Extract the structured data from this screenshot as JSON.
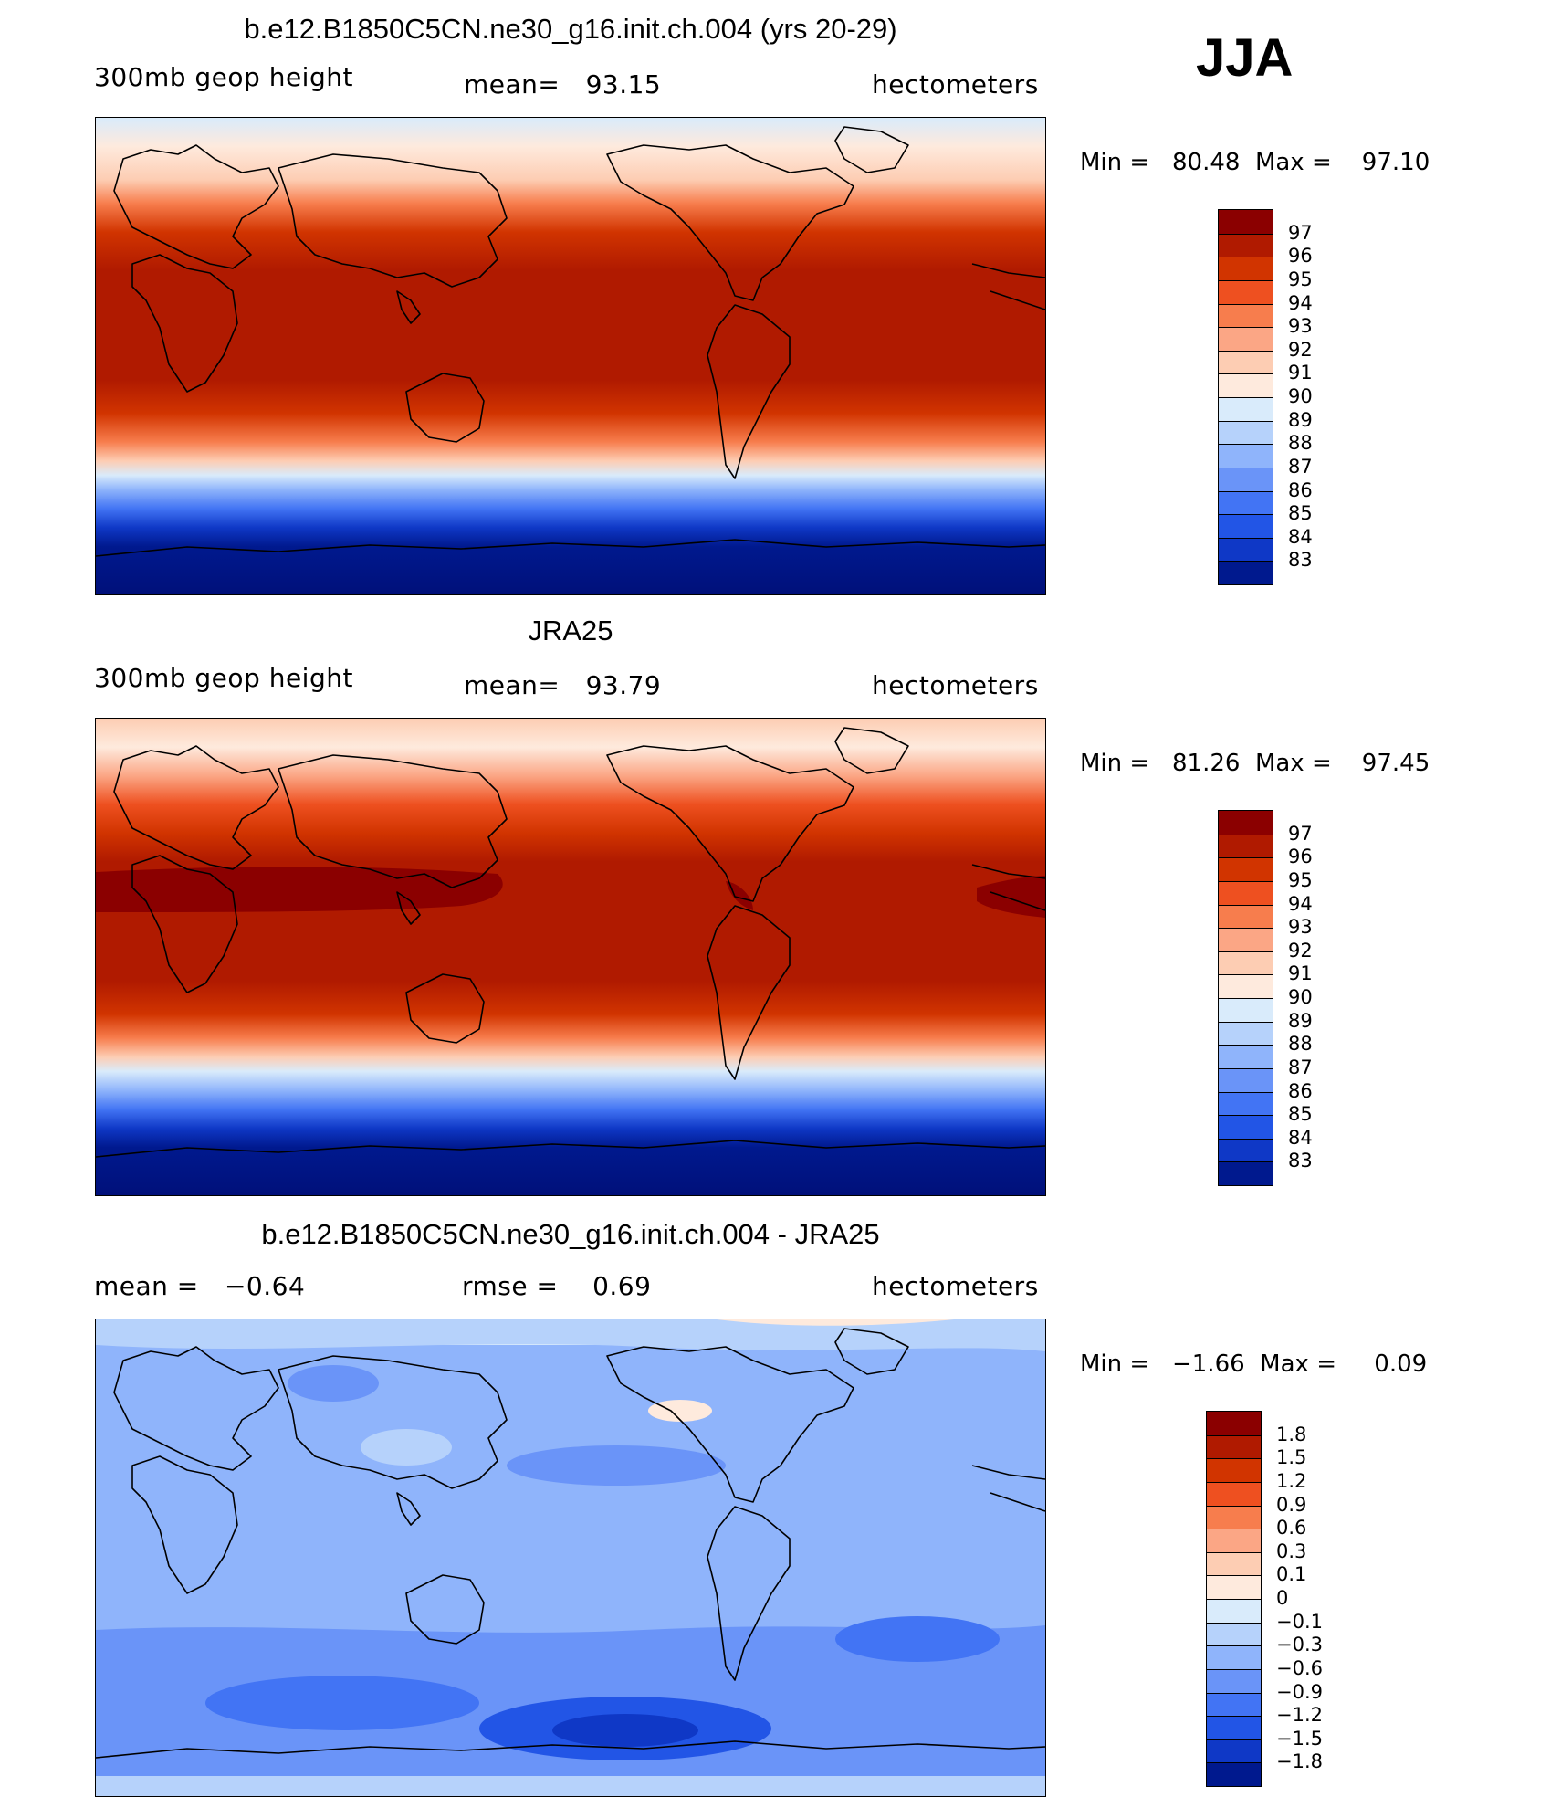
{
  "season": "JJA",
  "units_label": "hectometers",
  "panels": [
    {
      "id": "model",
      "title": "b.e12.B1850C5CN.ne30_g16.init.ch.004 (yrs 20-29)",
      "variable": "300mb geop height",
      "stat1": "mean=   93.15",
      "units": "hectometers",
      "min_max": "Min =   80.48  Max =    97.10",
      "colorbar_labels": [
        "97",
        "96",
        "95",
        "94",
        "93",
        "92",
        "91",
        "90",
        "89",
        "88",
        "87",
        "86",
        "85",
        "84",
        "83"
      ],
      "colorbar_colors": [
        "#8b0000",
        "#b01a00",
        "#d13400",
        "#ee5020",
        "#f77d4d",
        "#fba685",
        "#fdcdb3",
        "#feeadd",
        "#d9ebfb",
        "#b6d2fb",
        "#8fb4fb",
        "#6a94f8",
        "#4274f4",
        "#2255e6",
        "#0f38c6",
        "#00198e"
      ]
    },
    {
      "id": "obs",
      "title": "JRA25",
      "variable": "300mb geop height",
      "stat1": "mean=   93.79",
      "units": "hectometers",
      "min_max": "Min =   81.26  Max =    97.45",
      "colorbar_labels": [
        "97",
        "96",
        "95",
        "94",
        "93",
        "92",
        "91",
        "90",
        "89",
        "88",
        "87",
        "86",
        "85",
        "84",
        "83"
      ],
      "colorbar_colors": [
        "#8b0000",
        "#b01a00",
        "#d13400",
        "#ee5020",
        "#f77d4d",
        "#fba685",
        "#fdcdb3",
        "#feeadd",
        "#d9ebfb",
        "#b6d2fb",
        "#8fb4fb",
        "#6a94f8",
        "#4274f4",
        "#2255e6",
        "#0f38c6",
        "#00198e"
      ]
    },
    {
      "id": "diff",
      "title": "b.e12.B1850C5CN.ne30_g16.init.ch.004 - JRA25",
      "variable": "mean =   −0.64",
      "stat1": "rmse =    0.69",
      "units": "hectometers",
      "min_max": "Min =   −1.66  Max =     0.09",
      "colorbar_labels": [
        "1.8",
        "1.5",
        "1.2",
        "0.9",
        "0.6",
        "0.3",
        "0.1",
        "0",
        "−0.1",
        "−0.3",
        "−0.6",
        "−0.9",
        "−1.2",
        "−1.5",
        "−1.8"
      ],
      "colorbar_colors": [
        "#8b0000",
        "#b01a00",
        "#d13400",
        "#ee5020",
        "#f77d4d",
        "#fba685",
        "#fdcdb3",
        "#feeadd",
        "#d9ebfb",
        "#b6d2fb",
        "#8fb4fb",
        "#6a94f8",
        "#4274f4",
        "#2255e6",
        "#0f38c6",
        "#00198e"
      ]
    }
  ]
}
